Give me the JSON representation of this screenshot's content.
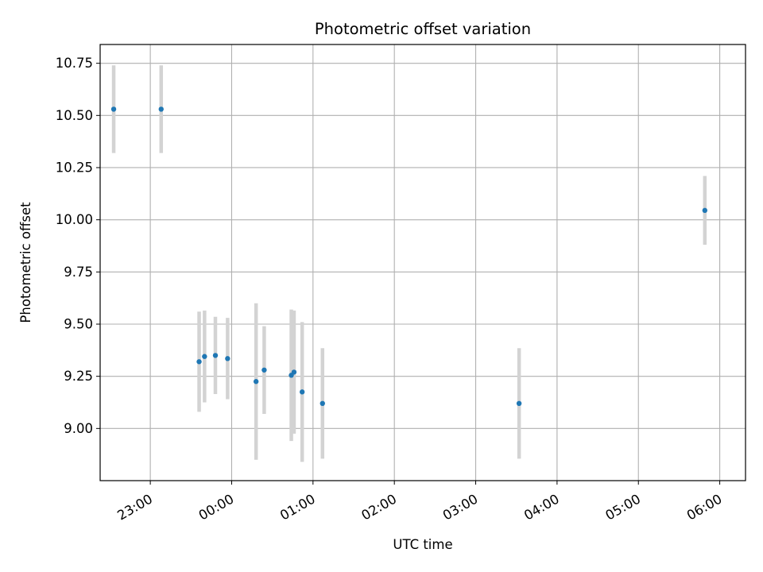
{
  "chart_data": {
    "type": "scatter",
    "title": "Photometric offset variation",
    "xlabel": "UTC time",
    "ylabel": "Photometric offset",
    "x_axis_kind": "time",
    "xlim": [
      "22:23",
      "06:19"
    ],
    "ylim": [
      8.75,
      10.84
    ],
    "x_ticks": [
      "23:00",
      "00:00",
      "01:00",
      "02:00",
      "03:00",
      "04:00",
      "05:00",
      "06:00"
    ],
    "y_ticks": [
      "9.00",
      "9.25",
      "9.50",
      "9.75",
      "10.00",
      "10.25",
      "10.50",
      "10.75"
    ],
    "grid": true,
    "legend": "none",
    "marker_color": "#1f77b4",
    "errorbar_color": "#d3d3d3",
    "points": [
      {
        "x": "22:33",
        "y": 10.53,
        "yerr": 0.21
      },
      {
        "x": "23:08",
        "y": 10.53,
        "yerr": 0.21
      },
      {
        "x": "23:36",
        "y": 9.32,
        "yerr": 0.24
      },
      {
        "x": "23:40",
        "y": 9.345,
        "yerr": 0.22
      },
      {
        "x": "23:48",
        "y": 9.35,
        "yerr": 0.185
      },
      {
        "x": "23:57",
        "y": 9.335,
        "yerr": 0.195
      },
      {
        "x": "00:18",
        "y": 9.225,
        "yerr": 0.375
      },
      {
        "x": "00:24",
        "y": 9.28,
        "yerr": 0.21
      },
      {
        "x": "00:44",
        "y": 9.255,
        "yerr": 0.315
      },
      {
        "x": "00:46",
        "y": 9.27,
        "yerr": 0.295
      },
      {
        "x": "00:52",
        "y": 9.175,
        "yerr": 0.335
      },
      {
        "x": "01:07",
        "y": 9.12,
        "yerr": 0.265
      },
      {
        "x": "03:32",
        "y": 9.12,
        "yerr": 0.265
      },
      {
        "x": "05:49",
        "y": 10.045,
        "yerr": 0.165
      }
    ]
  }
}
